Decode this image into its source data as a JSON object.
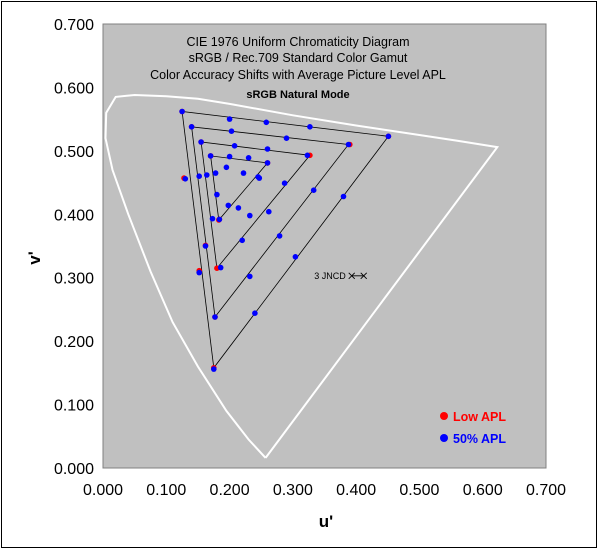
{
  "chart_data": {
    "type": "scatter",
    "title_lines": [
      "CIE 1976 Uniform Chromaticity Diagram",
      "sRGB / Rec.709 Standard Color Gamut",
      "Color Accuracy Shifts with Average Picture Level APL"
    ],
    "subtitle": "sRGB Natural Mode",
    "xlabel": "u'",
    "ylabel": "v'",
    "xlim": [
      0,
      0.7
    ],
    "ylim": [
      0,
      0.7
    ],
    "x_ticks": [
      "0.000",
      "0.100",
      "0.200",
      "0.300",
      "0.400",
      "0.500",
      "0.600",
      "0.700"
    ],
    "y_ticks": [
      "0.000",
      "0.100",
      "0.200",
      "0.300",
      "0.400",
      "0.500",
      "0.600",
      "0.700"
    ],
    "grid": false,
    "legend_position": "bottom-right",
    "annotation": "3 JNCD",
    "annotation_point": [
      0.393,
      0.303
    ],
    "colors": {
      "plot_background": "#c0c0c0",
      "locus": "#ffffff",
      "low_apl": "#ff0000",
      "apl_50": "#0000ff",
      "gamut_lines": "#000000"
    },
    "spectral_locus": [
      [
        0.257,
        0.016
      ],
      [
        0.23,
        0.045
      ],
      [
        0.195,
        0.09
      ],
      [
        0.15,
        0.16
      ],
      [
        0.11,
        0.23
      ],
      [
        0.075,
        0.31
      ],
      [
        0.04,
        0.4
      ],
      [
        0.015,
        0.47
      ],
      [
        0.004,
        0.52
      ],
      [
        0.005,
        0.56
      ],
      [
        0.02,
        0.585
      ],
      [
        0.05,
        0.588
      ],
      [
        0.1,
        0.586
      ],
      [
        0.15,
        0.582
      ],
      [
        0.2,
        0.574
      ],
      [
        0.3,
        0.556
      ],
      [
        0.4,
        0.54
      ],
      [
        0.5,
        0.525
      ],
      [
        0.56,
        0.516
      ],
      [
        0.623,
        0.506
      ],
      [
        0.257,
        0.016
      ]
    ],
    "triangles": [
      {
        "r": [
          0.451,
          0.523
        ],
        "g": [
          0.125,
          0.562
        ],
        "b": [
          0.175,
          0.158
        ]
      },
      {
        "r": [
          0.388,
          0.51
        ],
        "g": [
          0.14,
          0.538
        ],
        "b": [
          0.177,
          0.238
        ]
      },
      {
        "r": [
          0.327,
          0.493
        ],
        "g": [
          0.155,
          0.514
        ],
        "b": [
          0.18,
          0.315
        ]
      },
      {
        "r": [
          0.26,
          0.481
        ],
        "g": [
          0.17,
          0.492
        ],
        "b": [
          0.183,
          0.391
        ]
      }
    ],
    "series": [
      {
        "name": "Low APL",
        "color": "#ff0000",
        "points": [
          [
            0.125,
            0.562
          ],
          [
            0.14,
            0.538
          ],
          [
            0.155,
            0.514
          ],
          [
            0.17,
            0.492
          ],
          [
            0.451,
            0.523
          ],
          [
            0.39,
            0.51
          ],
          [
            0.327,
            0.493
          ],
          [
            0.26,
            0.481
          ],
          [
            0.175,
            0.158
          ],
          [
            0.177,
            0.238
          ],
          [
            0.18,
            0.315
          ],
          [
            0.183,
            0.391
          ],
          [
            0.184,
            0.392
          ],
          [
            0.162,
            0.351
          ],
          [
            0.152,
            0.311
          ],
          [
            0.128,
            0.457
          ]
        ]
      },
      {
        "name": "50% APL",
        "color": "#0000ff",
        "points": [
          [
            0.125,
            0.562
          ],
          [
            0.2,
            0.55
          ],
          [
            0.258,
            0.545
          ],
          [
            0.327,
            0.538
          ],
          [
            0.451,
            0.523
          ],
          [
            0.14,
            0.538
          ],
          [
            0.203,
            0.531
          ],
          [
            0.29,
            0.52
          ],
          [
            0.388,
            0.51
          ],
          [
            0.155,
            0.514
          ],
          [
            0.208,
            0.508
          ],
          [
            0.26,
            0.503
          ],
          [
            0.323,
            0.493
          ],
          [
            0.17,
            0.492
          ],
          [
            0.2,
            0.491
          ],
          [
            0.23,
            0.489
          ],
          [
            0.26,
            0.481
          ],
          [
            0.195,
            0.474
          ],
          [
            0.222,
            0.465
          ],
          [
            0.245,
            0.459
          ],
          [
            0.247,
            0.457
          ],
          [
            0.178,
            0.465
          ],
          [
            0.164,
            0.462
          ],
          [
            0.152,
            0.46
          ],
          [
            0.13,
            0.456
          ],
          [
            0.333,
            0.438
          ],
          [
            0.287,
            0.449
          ],
          [
            0.18,
            0.431
          ],
          [
            0.198,
            0.414
          ],
          [
            0.214,
            0.41
          ],
          [
            0.232,
            0.398
          ],
          [
            0.262,
            0.404
          ],
          [
            0.38,
            0.428
          ],
          [
            0.173,
            0.393
          ],
          [
            0.184,
            0.392
          ],
          [
            0.22,
            0.359
          ],
          [
            0.279,
            0.366
          ],
          [
            0.162,
            0.35
          ],
          [
            0.152,
            0.308
          ],
          [
            0.186,
            0.316
          ],
          [
            0.232,
            0.302
          ],
          [
            0.304,
            0.333
          ],
          [
            0.177,
            0.238
          ],
          [
            0.24,
            0.244
          ],
          [
            0.175,
            0.156
          ]
        ]
      }
    ]
  }
}
